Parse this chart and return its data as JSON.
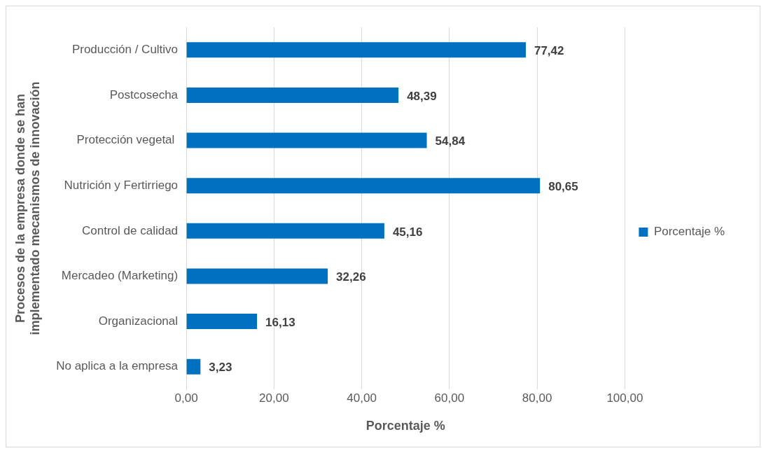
{
  "chart_data": {
    "type": "bar",
    "orientation": "horizontal",
    "xlabel": "Porcentaje %",
    "ylabel": "Procesos de la empresa donde se han implementado mecanismos de innovación",
    "categories": [
      "Producción / Cultivo",
      "Postcosecha",
      "Protección vegetal ",
      "Nutrición y Fertirriego",
      "Control de calidad",
      "Mercadeo (Marketing)",
      "Organizacional",
      "No aplica a la empresa"
    ],
    "series": [
      {
        "name": "Porcentaje %",
        "color": "#0070c0",
        "values": [
          77.42,
          48.39,
          54.84,
          80.65,
          45.16,
          32.26,
          16.13,
          3.23
        ],
        "value_labels": [
          "77,42",
          "48,39",
          "54,84",
          "80,65",
          "45,16",
          "32,26",
          "16,13",
          "3,23"
        ]
      }
    ],
    "xlim": [
      0,
      100
    ],
    "xticks": [
      {
        "value": 0,
        "label": "0,00"
      },
      {
        "value": 20,
        "label": "20,00"
      },
      {
        "value": 40,
        "label": "40,00"
      },
      {
        "value": 60,
        "label": "60,00"
      },
      {
        "value": 80,
        "label": "80,00"
      },
      {
        "value": 100,
        "label": "100,00"
      }
    ],
    "grid": "x",
    "legend": "right"
  }
}
